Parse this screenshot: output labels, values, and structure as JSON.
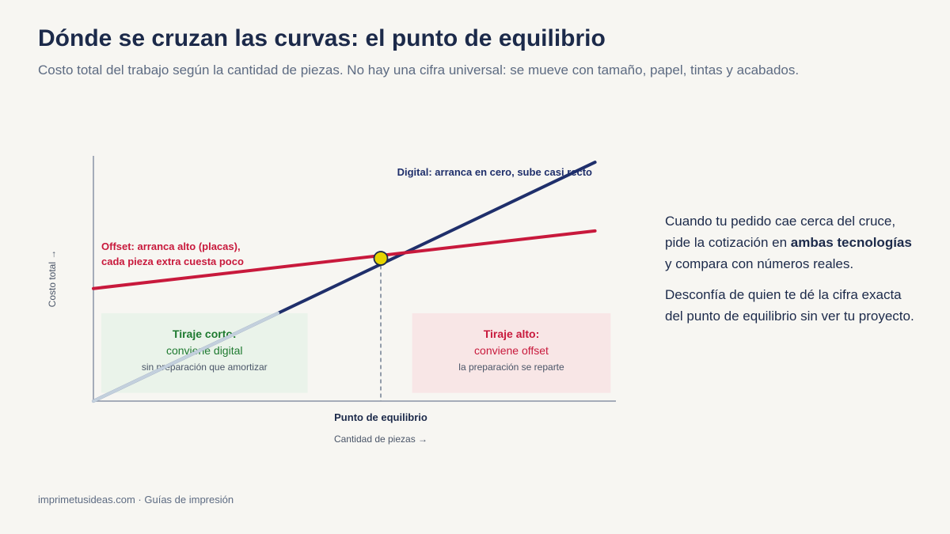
{
  "header": {
    "title": "Dónde se cruzan las curvas: el punto de equilibrio",
    "subtitle": "Costo total del trabajo según la cantidad de piezas. No hay una cifra universal: se mueve con tamaño, papel, tintas y acabados."
  },
  "chart_data": {
    "type": "line",
    "x_axis": {
      "label": "Cantidad de piezas →",
      "ticks": []
    },
    "y_axis": {
      "label": "Costo total →",
      "ticks": []
    },
    "x_range": [
      0,
      100
    ],
    "y_range": [
      0,
      100
    ],
    "series": [
      {
        "name": "Digital",
        "label": "Digital: arranca en cero, sube casi recto",
        "color": "#1f2f6b",
        "points": [
          [
            0,
            0
          ],
          [
            96,
            87
          ]
        ]
      },
      {
        "name": "Offset",
        "label_lines": [
          "Offset: arranca alto (placas),",
          "cada pieza extra cuesta poco"
        ],
        "color": "#c8193c",
        "points": [
          [
            0,
            41
          ],
          [
            96,
            62
          ]
        ]
      }
    ],
    "break_even": {
      "x": 55,
      "y": 52,
      "label": "Punto de equilibrio",
      "marker_color": "#e6d400"
    },
    "regions": [
      {
        "name": "short-run",
        "title": "Tiraje corto:",
        "line": "conviene digital",
        "note": "sin preparación que amortizar",
        "x_range": [
          1.5,
          41
        ],
        "y_range": [
          3,
          32
        ],
        "fill": "#eaf3ea",
        "title_color": "#1e7a30"
      },
      {
        "name": "long-run",
        "title": "Tiraje alto:",
        "line": "conviene offset",
        "note": "la preparación se reparte",
        "x_range": [
          61,
          99
        ],
        "y_range": [
          3,
          32
        ],
        "fill": "#f8e6e6",
        "title_color": "#c8193c"
      }
    ]
  },
  "sidebar": {
    "p1_before": "Cuando tu pedido cae cerca del cruce, pide la cotización en ",
    "p1_bold": "ambas tecnologías",
    "p1_after": " y compara con números reales.",
    "p2": "Desconfía de quien te dé la cifra exacta del punto de equilibrio sin ver tu proyecto."
  },
  "footer": {
    "text": "imprimetusideas.com · Guías de impresión"
  }
}
